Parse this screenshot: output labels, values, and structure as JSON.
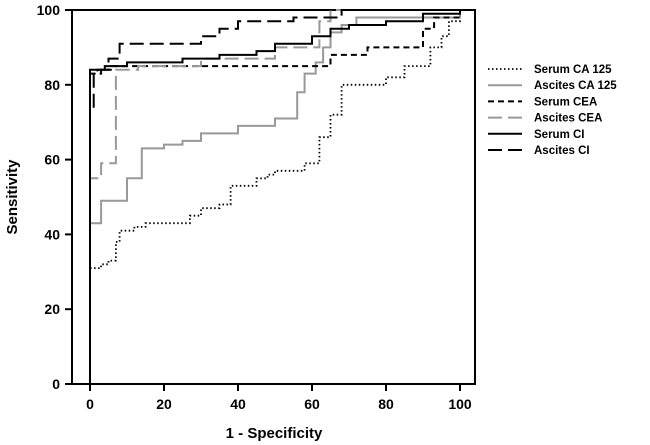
{
  "chart_data": {
    "type": "line",
    "title": "",
    "xlabel": "1 - Specificity",
    "ylabel": "Sensitivity",
    "xlim": [
      0,
      100
    ],
    "ylim": [
      0,
      100
    ],
    "xticks": [
      0,
      20,
      40,
      60,
      80,
      100
    ],
    "yticks": [
      0,
      20,
      40,
      60,
      80,
      100
    ],
    "grid": false,
    "legend_position": "right",
    "series": [
      {
        "name": "Serum CA 125",
        "color": "#000000",
        "style": "dotted",
        "points": [
          [
            0,
            0
          ],
          [
            0,
            31
          ],
          [
            3,
            31
          ],
          [
            3,
            32
          ],
          [
            5,
            32
          ],
          [
            5,
            33
          ],
          [
            7,
            33
          ],
          [
            7,
            38
          ],
          [
            8,
            38
          ],
          [
            8,
            41
          ],
          [
            12,
            41
          ],
          [
            12,
            42
          ],
          [
            15,
            42
          ],
          [
            15,
            43
          ],
          [
            27,
            43
          ],
          [
            27,
            45
          ],
          [
            30,
            45
          ],
          [
            30,
            47
          ],
          [
            35,
            47
          ],
          [
            35,
            48
          ],
          [
            38,
            48
          ],
          [
            38,
            53
          ],
          [
            45,
            53
          ],
          [
            45,
            55
          ],
          [
            48,
            55
          ],
          [
            48,
            56
          ],
          [
            50,
            56
          ],
          [
            50,
            57
          ],
          [
            58,
            57
          ],
          [
            58,
            59
          ],
          [
            62,
            59
          ],
          [
            62,
            66
          ],
          [
            65,
            66
          ],
          [
            65,
            72
          ],
          [
            68,
            72
          ],
          [
            68,
            80
          ],
          [
            80,
            80
          ],
          [
            80,
            82
          ],
          [
            85,
            82
          ],
          [
            85,
            85
          ],
          [
            92,
            85
          ],
          [
            92,
            90
          ],
          [
            95,
            90
          ],
          [
            95,
            93
          ],
          [
            97,
            93
          ],
          [
            97,
            97
          ],
          [
            100,
            97
          ],
          [
            100,
            100
          ]
        ]
      },
      {
        "name": "Ascites CA 125",
        "color": "#999999",
        "style": "solid",
        "points": [
          [
            0,
            0
          ],
          [
            0,
            43
          ],
          [
            3,
            43
          ],
          [
            3,
            49
          ],
          [
            10,
            49
          ],
          [
            10,
            55
          ],
          [
            14,
            55
          ],
          [
            14,
            63
          ],
          [
            20,
            63
          ],
          [
            20,
            64
          ],
          [
            25,
            64
          ],
          [
            25,
            65
          ],
          [
            30,
            65
          ],
          [
            30,
            67
          ],
          [
            40,
            67
          ],
          [
            40,
            69
          ],
          [
            50,
            69
          ],
          [
            50,
            71
          ],
          [
            56,
            71
          ],
          [
            56,
            78
          ],
          [
            58,
            78
          ],
          [
            58,
            83
          ],
          [
            61,
            83
          ],
          [
            61,
            86
          ],
          [
            63,
            86
          ],
          [
            63,
            90
          ],
          [
            65,
            90
          ],
          [
            65,
            94
          ],
          [
            68,
            94
          ],
          [
            68,
            96
          ],
          [
            72,
            96
          ],
          [
            72,
            98
          ],
          [
            100,
            98
          ],
          [
            100,
            100
          ]
        ]
      },
      {
        "name": "Serum CEA",
        "color": "#000000",
        "style": "dashed",
        "points": [
          [
            0,
            0
          ],
          [
            0,
            83
          ],
          [
            2,
            83
          ],
          [
            2,
            84
          ],
          [
            6,
            84
          ],
          [
            6,
            85
          ],
          [
            65,
            85
          ],
          [
            65,
            88
          ],
          [
            75,
            88
          ],
          [
            75,
            90
          ],
          [
            90,
            90
          ],
          [
            90,
            95
          ],
          [
            93,
            95
          ],
          [
            93,
            98
          ],
          [
            100,
            98
          ],
          [
            100,
            100
          ]
        ]
      },
      {
        "name": "Ascites CEA",
        "color": "#999999",
        "style": "long-dashed",
        "points": [
          [
            0,
            0
          ],
          [
            0,
            55
          ],
          [
            3,
            55
          ],
          [
            3,
            59
          ],
          [
            7,
            59
          ],
          [
            7,
            84
          ],
          [
            13,
            84
          ],
          [
            13,
            85
          ],
          [
            30,
            85
          ],
          [
            30,
            87
          ],
          [
            50,
            87
          ],
          [
            50,
            90
          ],
          [
            62,
            90
          ],
          [
            62,
            97
          ],
          [
            65,
            97
          ],
          [
            65,
            100
          ],
          [
            100,
            100
          ]
        ]
      },
      {
        "name": "Serum CI",
        "color": "#000000",
        "style": "solid",
        "points": [
          [
            0,
            0
          ],
          [
            0,
            84
          ],
          [
            4,
            84
          ],
          [
            4,
            85
          ],
          [
            10,
            85
          ],
          [
            10,
            86
          ],
          [
            25,
            86
          ],
          [
            25,
            87
          ],
          [
            35,
            87
          ],
          [
            35,
            88
          ],
          [
            45,
            88
          ],
          [
            45,
            89
          ],
          [
            50,
            89
          ],
          [
            50,
            91
          ],
          [
            60,
            91
          ],
          [
            60,
            93
          ],
          [
            65,
            93
          ],
          [
            65,
            95
          ],
          [
            70,
            95
          ],
          [
            70,
            96
          ],
          [
            80,
            96
          ],
          [
            80,
            97
          ],
          [
            90,
            97
          ],
          [
            90,
            99
          ],
          [
            100,
            99
          ],
          [
            100,
            100
          ]
        ]
      },
      {
        "name": "Ascites CI",
        "color": "#000000",
        "style": "long-dashed",
        "points": [
          [
            0,
            0
          ],
          [
            0,
            73
          ],
          [
            1,
            73
          ],
          [
            1,
            83
          ],
          [
            3,
            83
          ],
          [
            3,
            84
          ],
          [
            5,
            84
          ],
          [
            5,
            87
          ],
          [
            8,
            87
          ],
          [
            8,
            91
          ],
          [
            30,
            91
          ],
          [
            30,
            93
          ],
          [
            35,
            93
          ],
          [
            35,
            95
          ],
          [
            40,
            95
          ],
          [
            40,
            97
          ],
          [
            55,
            97
          ],
          [
            55,
            98
          ],
          [
            68,
            98
          ],
          [
            68,
            100
          ],
          [
            100,
            100
          ]
        ]
      }
    ]
  }
}
